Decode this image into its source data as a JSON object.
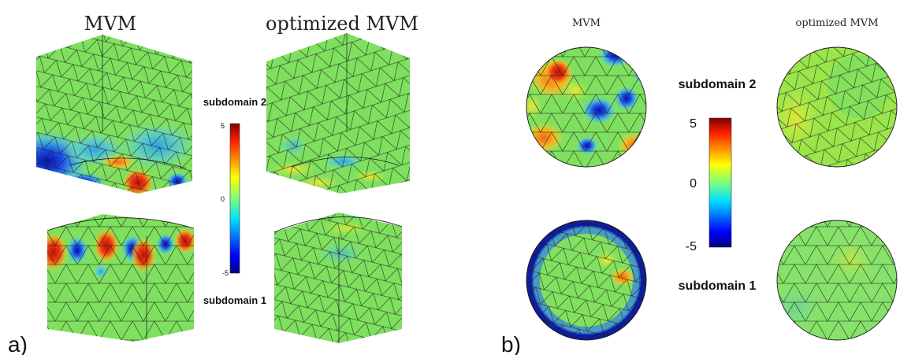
{
  "panel_a": {
    "label": "a)",
    "col_left_title": "MVM",
    "col_right_title": "optimized MVM",
    "subdomain_top": "subdomain 2",
    "subdomain_bottom": "subdomain 1",
    "colorbar": {
      "max_label": "5",
      "mid_label": "0",
      "min_label": "-5"
    }
  },
  "panel_b": {
    "label": "b)",
    "col_left_title": "MVM",
    "col_right_title": "optimized MVM",
    "subdomain_top": "subdomain 2",
    "subdomain_bottom": "subdomain 1",
    "colorbar": {
      "max_label": "5",
      "mid_label": "0",
      "min_label": "-5"
    }
  },
  "colors": {
    "base_green": "#7ee05e",
    "hot_red": "#c81e10",
    "cold_blue": "#0a1aa0",
    "orange": "#f39a1a",
    "yellow": "#e8e83a",
    "cyan": "#3fb6e8"
  }
}
